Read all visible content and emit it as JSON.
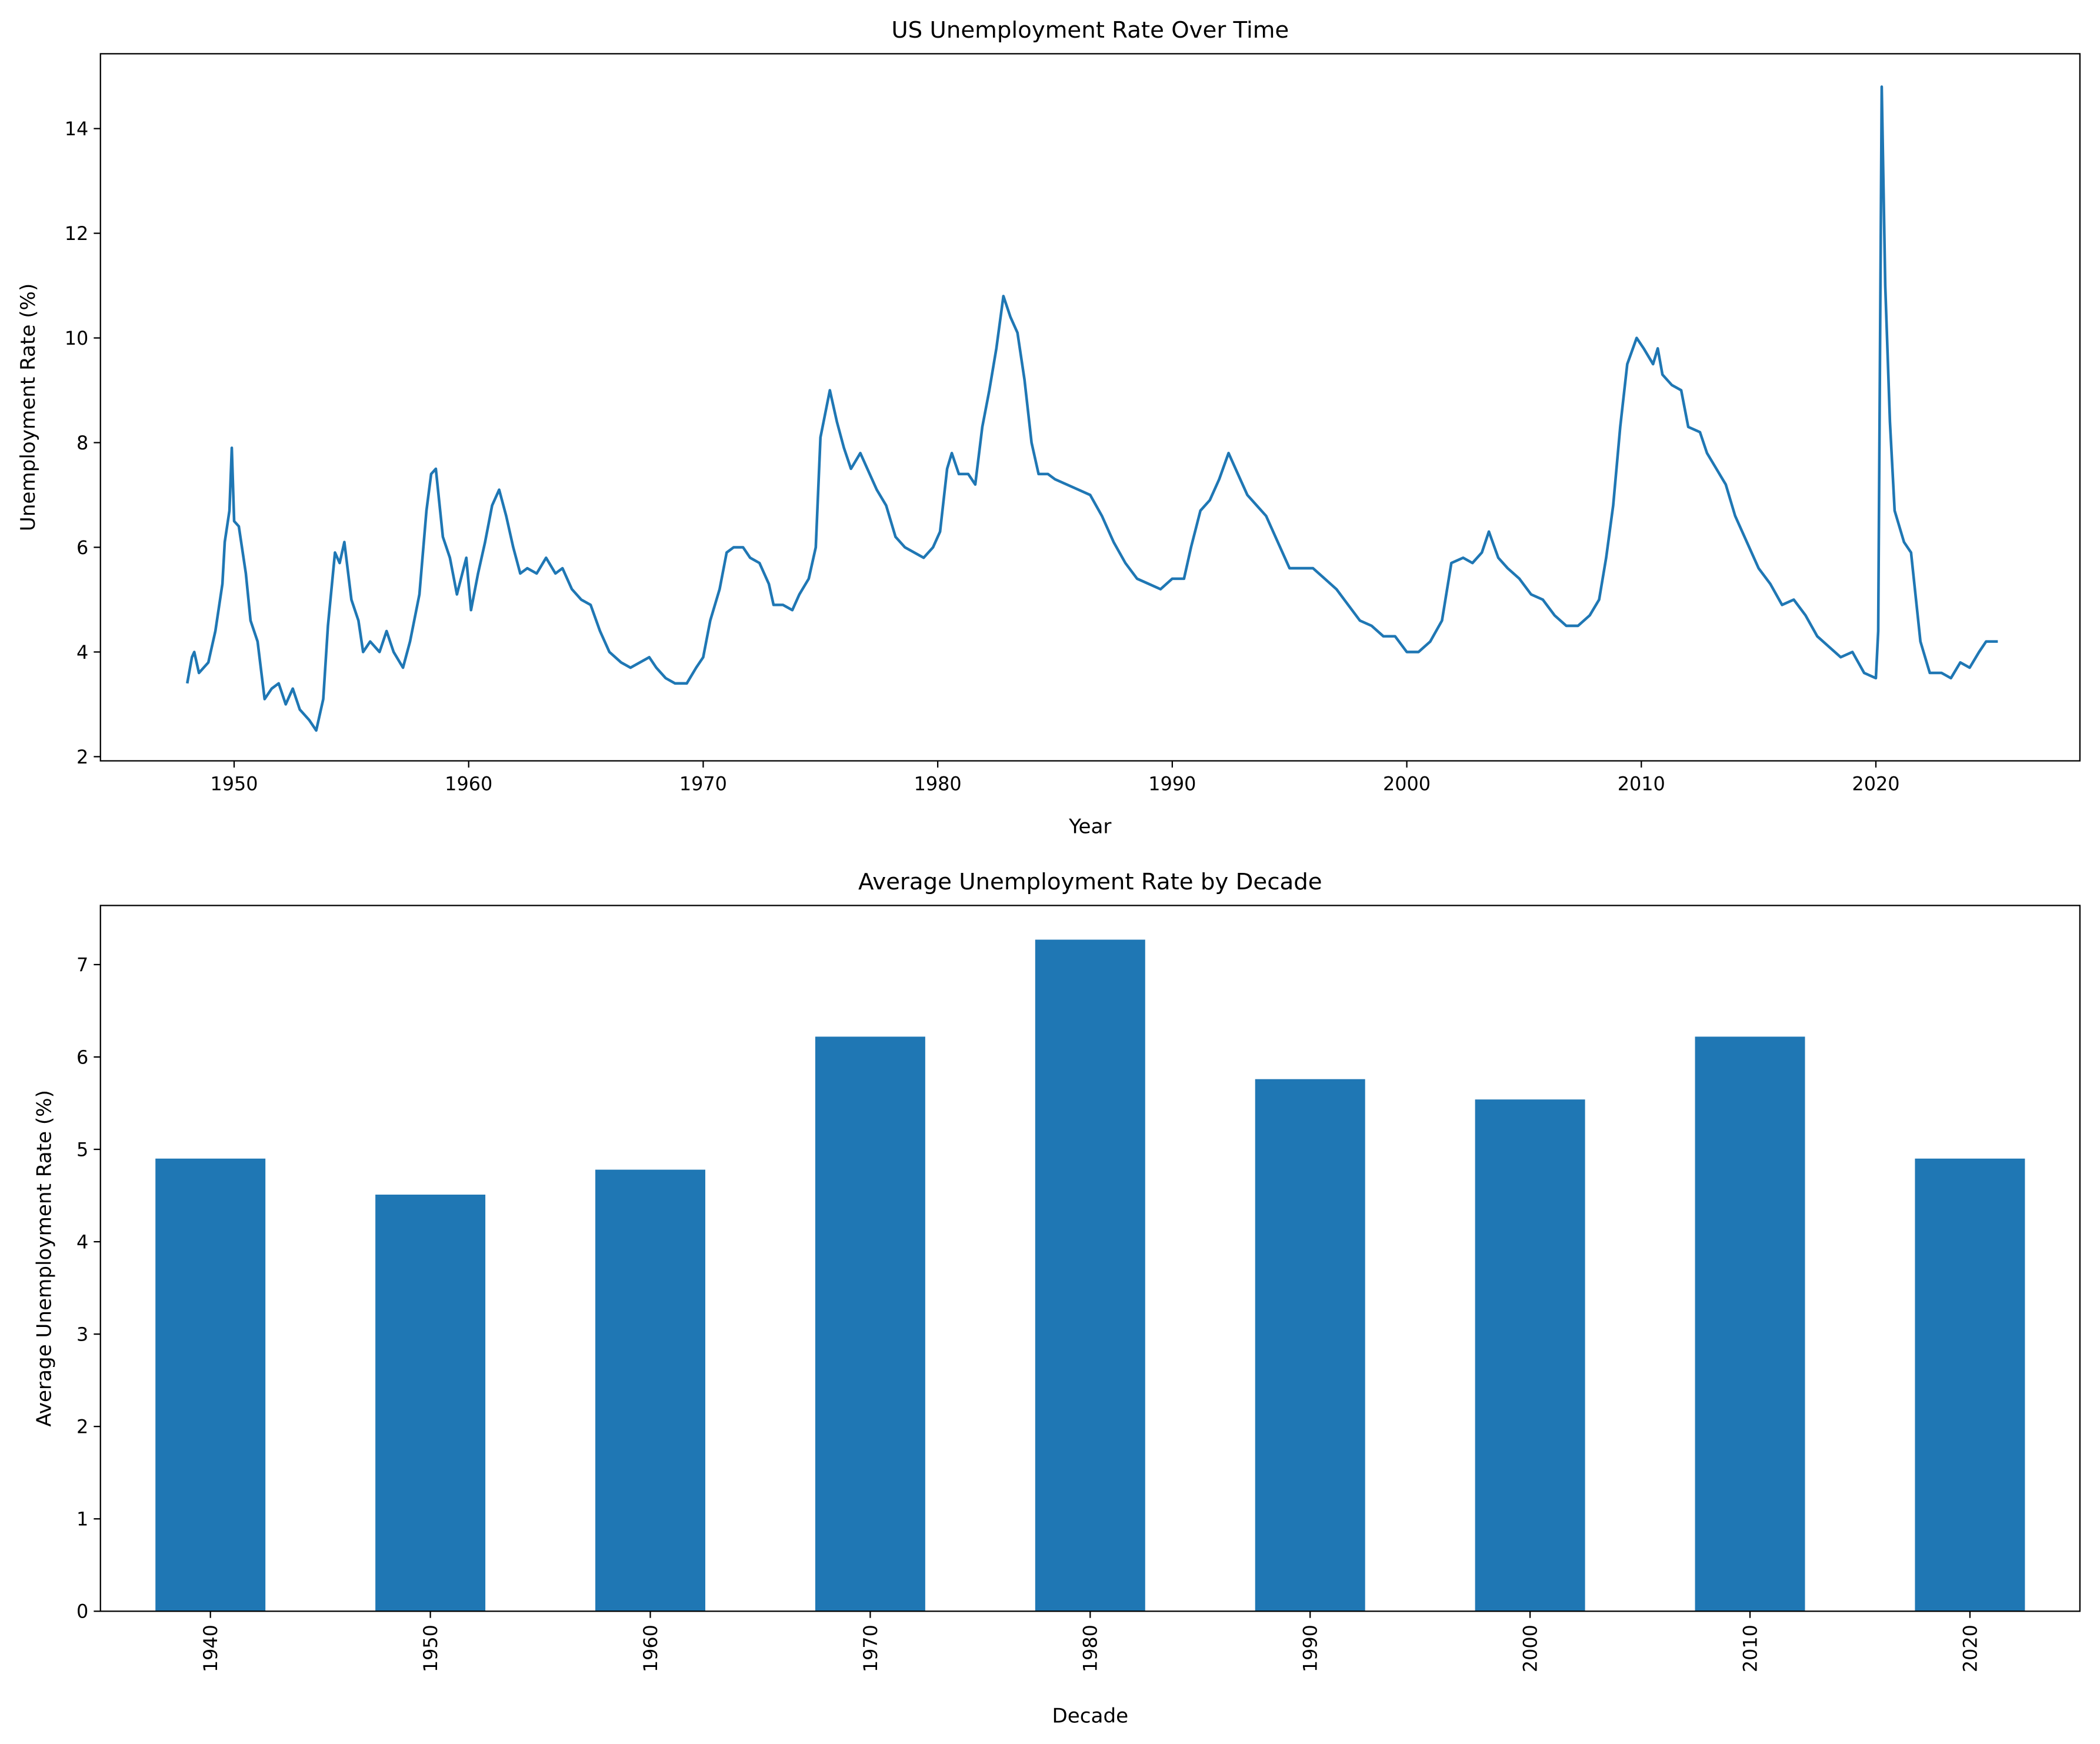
{
  "chart_data": [
    {
      "type": "line",
      "title": "US Unemployment Rate Over Time",
      "x_label": "Year",
      "y_label": "Unemployment Rate (%)",
      "x": [
        1948.0,
        1948.2,
        1948.3,
        1948.5,
        1948.9,
        1949.2,
        1949.5,
        1949.6,
        1949.8,
        1949.9,
        1950.0,
        1950.2,
        1950.5,
        1950.7,
        1951.0,
        1951.3,
        1951.6,
        1951.9,
        1952.2,
        1952.5,
        1952.8,
        1953.2,
        1953.5,
        1953.8,
        1954.0,
        1954.3,
        1954.5,
        1954.7,
        1955.0,
        1955.3,
        1955.5,
        1955.8,
        1956.2,
        1956.5,
        1956.8,
        1957.2,
        1957.5,
        1957.9,
        1958.2,
        1958.4,
        1958.6,
        1958.9,
        1959.2,
        1959.5,
        1959.9,
        1960.1,
        1960.4,
        1960.7,
        1961.0,
        1961.3,
        1961.6,
        1961.9,
        1962.2,
        1962.5,
        1962.9,
        1963.3,
        1963.7,
        1964.0,
        1964.4,
        1964.8,
        1965.2,
        1965.6,
        1966.0,
        1966.5,
        1966.9,
        1967.3,
        1967.7,
        1968.0,
        1968.4,
        1968.8,
        1969.3,
        1969.7,
        1970.0,
        1970.3,
        1970.7,
        1971.0,
        1971.3,
        1971.7,
        1972.0,
        1972.4,
        1972.8,
        1973.0,
        1973.4,
        1973.8,
        1974.1,
        1974.5,
        1974.8,
        1975.0,
        1975.4,
        1975.7,
        1976.0,
        1976.3,
        1976.7,
        1977.0,
        1977.4,
        1977.8,
        1978.2,
        1978.6,
        1979.0,
        1979.4,
        1979.8,
        1980.1,
        1980.4,
        1980.6,
        1980.9,
        1981.3,
        1981.6,
        1981.9,
        1982.2,
        1982.5,
        1982.8,
        1983.1,
        1983.4,
        1983.7,
        1984.0,
        1984.3,
        1984.7,
        1985.0,
        1985.5,
        1986.0,
        1986.5,
        1987.0,
        1987.5,
        1988.0,
        1988.5,
        1989.0,
        1989.5,
        1990.0,
        1990.5,
        1990.8,
        1991.2,
        1991.6,
        1992.0,
        1992.4,
        1992.8,
        1993.2,
        1993.6,
        1994.0,
        1994.5,
        1995.0,
        1995.5,
        1996.0,
        1996.5,
        1997.0,
        1997.5,
        1998.0,
        1998.5,
        1999.0,
        1999.5,
        2000.0,
        2000.5,
        2001.0,
        2001.5,
        2001.9,
        2002.4,
        2002.8,
        2003.2,
        2003.5,
        2003.9,
        2004.3,
        2004.8,
        2005.3,
        2005.8,
        2006.3,
        2006.8,
        2007.3,
        2007.8,
        2008.2,
        2008.5,
        2008.8,
        2009.1,
        2009.4,
        2009.8,
        2010.1,
        2010.5,
        2010.7,
        2010.9,
        2011.3,
        2011.7,
        2012.0,
        2012.5,
        2012.8,
        2013.2,
        2013.6,
        2014.0,
        2014.5,
        2015.0,
        2015.5,
        2016.0,
        2016.5,
        2017.0,
        2017.5,
        2018.0,
        2018.5,
        2019.0,
        2019.5,
        2020.0,
        2020.1,
        2020.25,
        2020.4,
        2020.6,
        2020.8,
        2021.2,
        2021.5,
        2021.9,
        2022.3,
        2022.8,
        2023.2,
        2023.6,
        2024.0,
        2024.4,
        2024.7,
        2025.2
      ],
      "values": [
        3.4,
        3.9,
        4.0,
        3.6,
        3.8,
        4.4,
        5.3,
        6.1,
        6.7,
        7.9,
        6.5,
        6.4,
        5.5,
        4.6,
        4.2,
        3.1,
        3.3,
        3.4,
        3.0,
        3.3,
        2.9,
        2.7,
        2.5,
        3.1,
        4.5,
        5.9,
        5.7,
        6.1,
        5.0,
        4.6,
        4.0,
        4.2,
        4.0,
        4.4,
        4.0,
        3.7,
        4.2,
        5.1,
        6.7,
        7.4,
        7.5,
        6.2,
        5.8,
        5.1,
        5.8,
        4.8,
        5.5,
        6.1,
        6.8,
        7.1,
        6.6,
        6.0,
        5.5,
        5.6,
        5.5,
        5.8,
        5.5,
        5.6,
        5.2,
        5.0,
        4.9,
        4.4,
        4.0,
        3.8,
        3.7,
        3.8,
        3.9,
        3.7,
        3.5,
        3.4,
        3.4,
        3.7,
        3.9,
        4.6,
        5.2,
        5.9,
        6.0,
        6.0,
        5.8,
        5.7,
        5.3,
        4.9,
        4.9,
        4.8,
        5.1,
        5.4,
        6.0,
        8.1,
        9.0,
        8.4,
        7.9,
        7.5,
        7.8,
        7.5,
        7.1,
        6.8,
        6.2,
        6.0,
        5.9,
        5.8,
        6.0,
        6.3,
        7.5,
        7.8,
        7.4,
        7.4,
        7.2,
        8.3,
        9.0,
        9.8,
        10.8,
        10.4,
        10.1,
        9.2,
        8.0,
        7.4,
        7.4,
        7.3,
        7.2,
        7.1,
        7.0,
        6.6,
        6.1,
        5.7,
        5.4,
        5.3,
        5.2,
        5.4,
        5.4,
        6.0,
        6.7,
        6.9,
        7.3,
        7.8,
        7.4,
        7.0,
        6.8,
        6.6,
        6.1,
        5.6,
        5.6,
        5.6,
        5.4,
        5.2,
        4.9,
        4.6,
        4.5,
        4.3,
        4.3,
        4.0,
        4.0,
        4.2,
        4.6,
        5.7,
        5.8,
        5.7,
        5.9,
        6.3,
        5.8,
        5.6,
        5.4,
        5.1,
        5.0,
        4.7,
        4.5,
        4.5,
        4.7,
        5.0,
        5.8,
        6.8,
        8.3,
        9.5,
        10.0,
        9.8,
        9.5,
        9.8,
        9.3,
        9.1,
        9.0,
        8.3,
        8.2,
        7.8,
        7.5,
        7.2,
        6.6,
        6.1,
        5.6,
        5.3,
        4.9,
        5.0,
        4.7,
        4.3,
        4.1,
        3.9,
        4.0,
        3.6,
        3.5,
        4.4,
        14.8,
        11.0,
        8.4,
        6.7,
        6.1,
        5.9,
        4.2,
        3.6,
        3.6,
        3.5,
        3.8,
        3.7,
        4.0,
        4.2,
        4.2
      ],
      "color": "#1f77b4",
      "xlim": [
        1944.3,
        2028.7
      ],
      "xticks": [
        1950,
        1960,
        1970,
        1980,
        1990,
        2000,
        2010,
        2020
      ],
      "ylim": [
        1.92,
        15.43
      ],
      "yticks": [
        2,
        4,
        6,
        8,
        10,
        12,
        14
      ]
    },
    {
      "type": "bar",
      "title": "Average Unemployment Rate by Decade",
      "x_label": "Decade",
      "y_label": "Average Unemployment Rate (%)",
      "categories": [
        "1940",
        "1950",
        "1960",
        "1970",
        "1980",
        "1990",
        "2000",
        "2010",
        "2020"
      ],
      "values": [
        4.9,
        4.51,
        4.78,
        6.22,
        7.27,
        5.76,
        5.54,
        6.22,
        4.9
      ],
      "color": "#1f77b4",
      "ylim": [
        0,
        7.64
      ],
      "yticks": [
        0,
        1,
        2,
        3,
        4,
        5,
        6,
        7
      ]
    }
  ]
}
